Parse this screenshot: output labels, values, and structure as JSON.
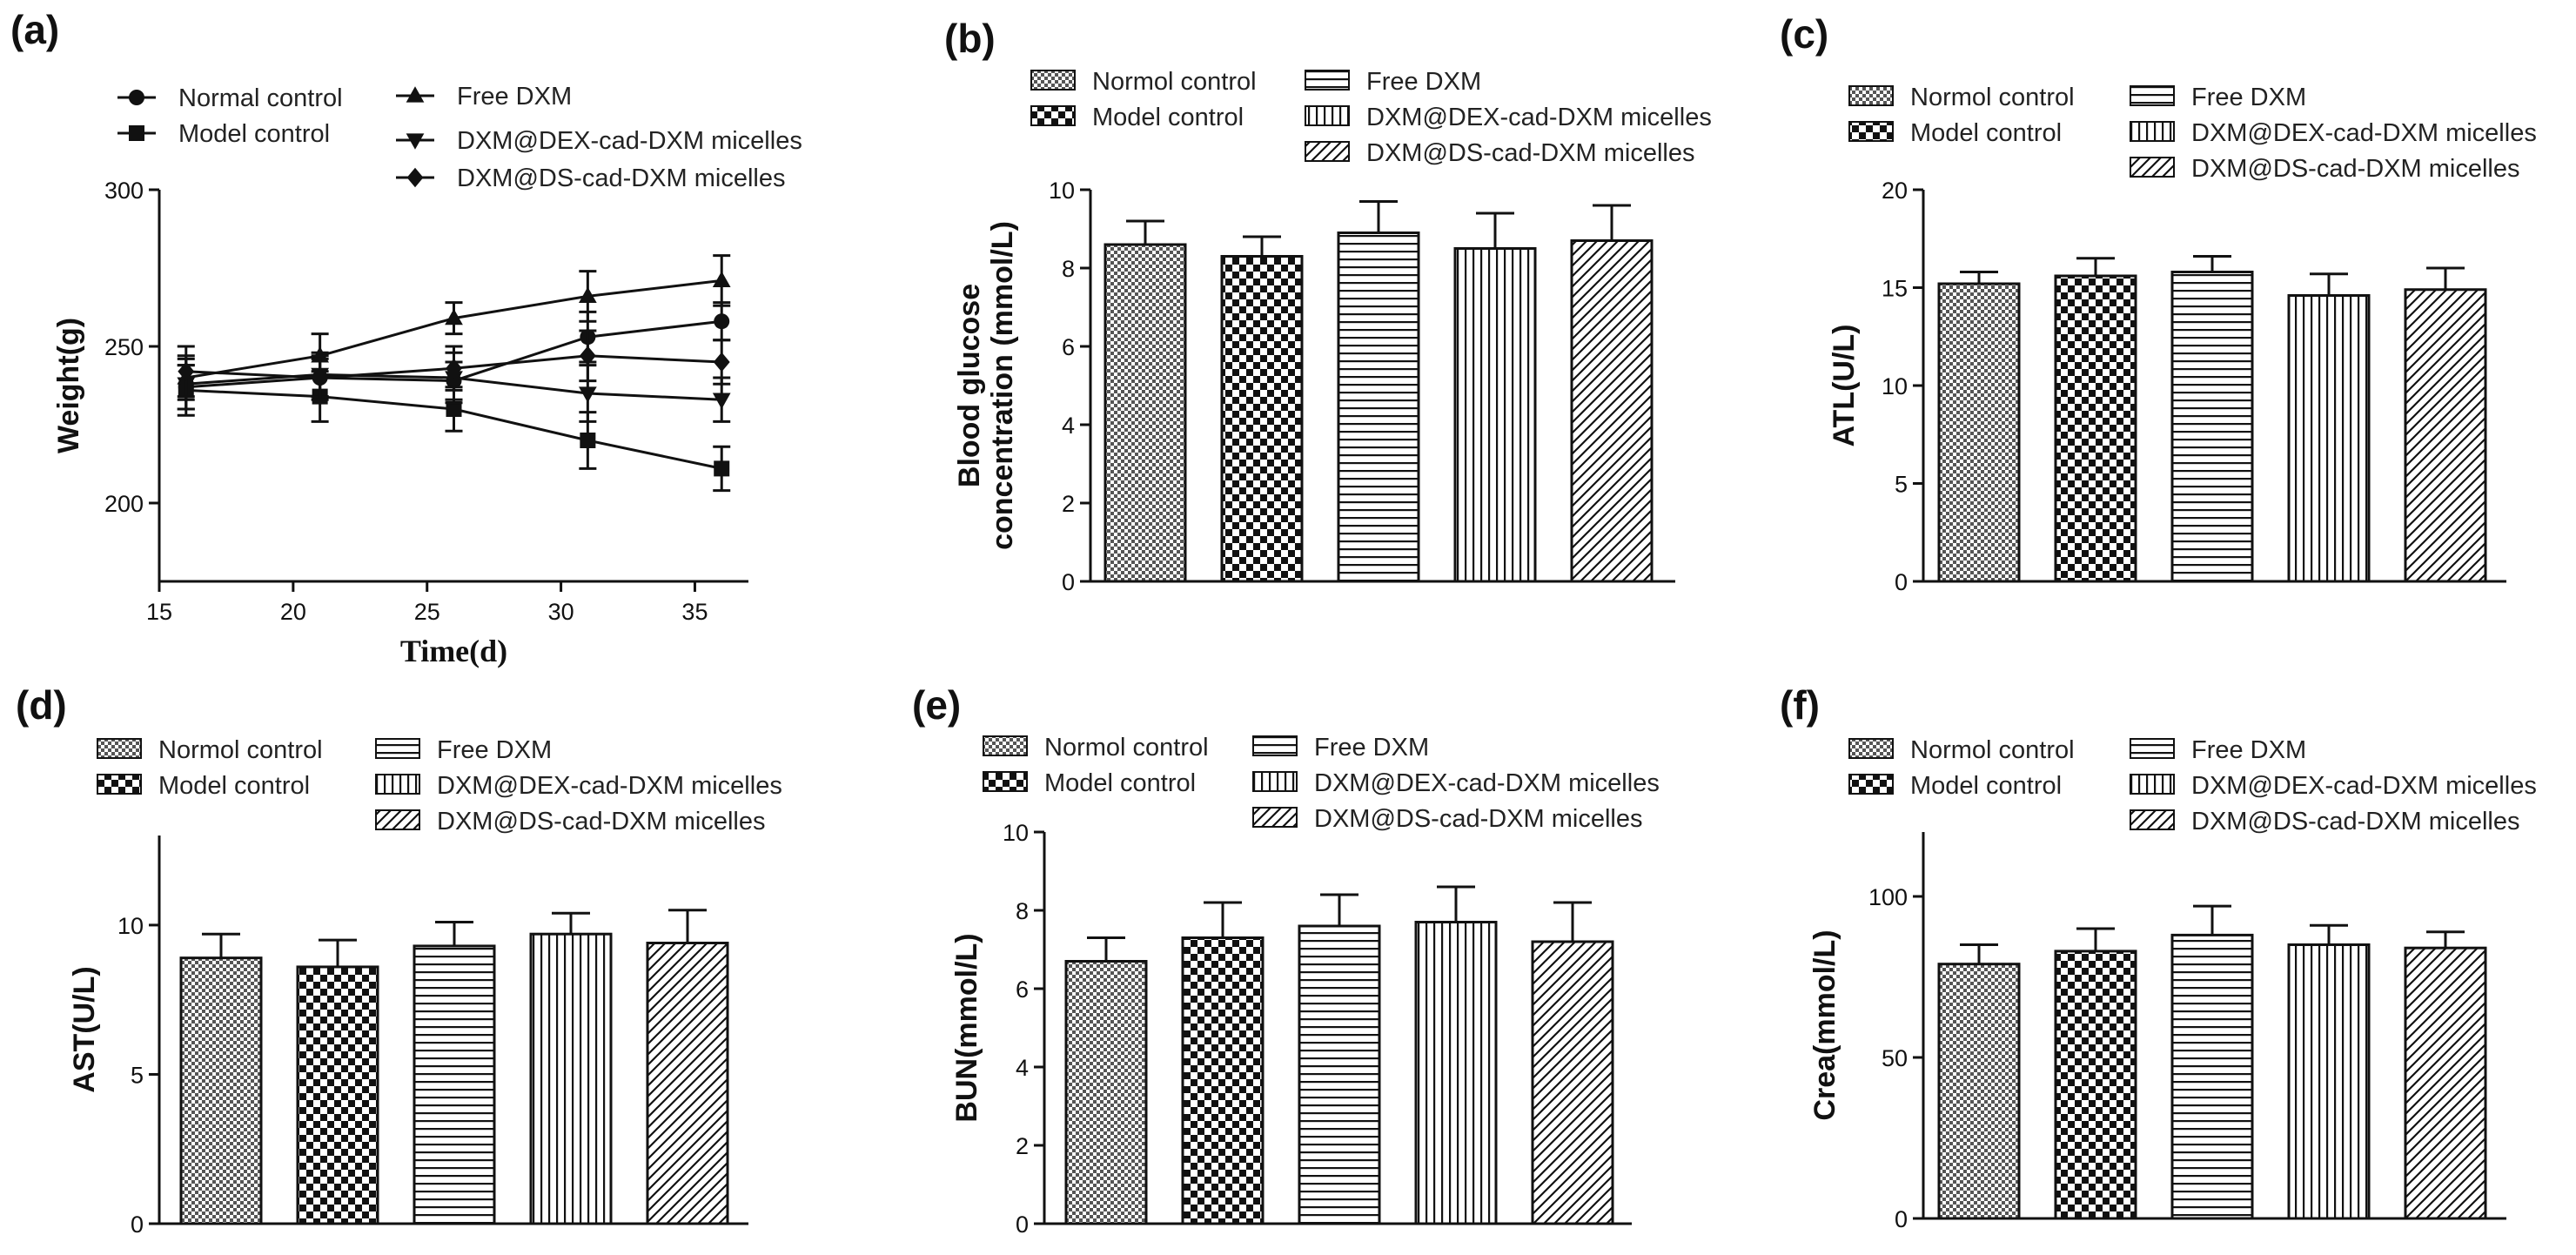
{
  "figure": {
    "panel_labels": [
      "(a)",
      "(b)",
      "(c)",
      "(d)",
      "(e)",
      "(f)"
    ]
  },
  "chart_data": [
    {
      "panel": "(a)",
      "type": "line",
      "xlabel": "Time(d)",
      "ylabel": "Weight(g)",
      "xlim": [
        15,
        37
      ],
      "ylim": [
        175,
        300
      ],
      "xticks": [
        15,
        20,
        25,
        30,
        35
      ],
      "yticks": [
        200,
        250,
        300
      ],
      "x": [
        16,
        21,
        26,
        31,
        36
      ],
      "legend": [
        "Normal control",
        "Model control",
        "Free DXM",
        "DXM@DEX-cad-DXM micelles",
        "DXM@DS-cad-DXM micelles"
      ],
      "series": [
        {
          "name": "Normal control",
          "marker": "circle",
          "values": [
            237,
            240,
            239,
            253,
            258
          ],
          "errors": [
            7,
            6,
            6,
            8,
            6
          ]
        },
        {
          "name": "Model control",
          "marker": "square",
          "values": [
            236,
            234,
            230,
            220,
            211
          ],
          "errors": [
            8,
            8,
            7,
            9,
            7
          ]
        },
        {
          "name": "Free DXM",
          "marker": "triangle-up",
          "values": [
            240,
            247,
            259,
            266,
            271
          ],
          "errors": [
            7,
            7,
            5,
            8,
            8
          ]
        },
        {
          "name": "DXM@DEX-cad-DXM micelles",
          "marker": "triangle-down",
          "values": [
            238,
            241,
            240,
            235,
            233
          ],
          "errors": [
            8,
            7,
            8,
            9,
            7
          ]
        },
        {
          "name": "DXM@DS-cad-DXM micelles",
          "marker": "diamond",
          "values": [
            242,
            240,
            243,
            247,
            245
          ],
          "errors": [
            8,
            7,
            7,
            8,
            7
          ]
        }
      ]
    },
    {
      "panel": "(b)",
      "type": "bar",
      "ylabel": "Blood glucose concentration (mmol/L)",
      "ylabel_lines": [
        "Blood glucose",
        "concentration (mmol/L)"
      ],
      "ylim": [
        0,
        10
      ],
      "yticks": [
        0,
        2,
        4,
        6,
        8,
        10
      ],
      "legend": [
        "Normol control",
        "Model control",
        "Free DXM",
        "DXM@DEX-cad-DXM micelles",
        "DXM@DS-cad-DXM micelles"
      ],
      "categories": [
        "Normol control",
        "Model control",
        "Free DXM",
        "DXM@DEX-cad-DXM micelles",
        "DXM@DS-cad-DXM micelles"
      ],
      "values": [
        8.6,
        8.3,
        8.9,
        8.5,
        8.7
      ],
      "errors": [
        0.6,
        0.5,
        0.8,
        0.9,
        0.9
      ]
    },
    {
      "panel": "(c)",
      "type": "bar",
      "ylabel": "ATL(U/L)",
      "ylim": [
        0,
        20
      ],
      "yticks": [
        0,
        5,
        10,
        15,
        20
      ],
      "legend": [
        "Normol control",
        "Model control",
        "Free DXM",
        "DXM@DEX-cad-DXM micelles",
        "DXM@DS-cad-DXM micelles"
      ],
      "categories": [
        "Normol control",
        "Model control",
        "Free DXM",
        "DXM@DEX-cad-DXM micelles",
        "DXM@DS-cad-DXM micelles"
      ],
      "values": [
        15.2,
        15.6,
        15.8,
        14.6,
        14.9
      ],
      "errors": [
        0.6,
        0.9,
        0.8,
        1.1,
        1.1
      ]
    },
    {
      "panel": "(d)",
      "type": "bar",
      "ylabel": "AST(U/L)",
      "ylim": [
        0,
        13
      ],
      "yticks": [
        0,
        5,
        10
      ],
      "legend": [
        "Normol control",
        "Model control",
        "Free DXM",
        "DXM@DEX-cad-DXM micelles",
        "DXM@DS-cad-DXM micelles"
      ],
      "categories": [
        "Normol control",
        "Model control",
        "Free DXM",
        "DXM@DEX-cad-DXM micelles",
        "DXM@DS-cad-DXM micelles"
      ],
      "values": [
        8.9,
        8.6,
        9.3,
        9.7,
        9.4
      ],
      "errors": [
        0.8,
        0.9,
        0.8,
        0.7,
        1.1
      ]
    },
    {
      "panel": "(e)",
      "type": "bar",
      "ylabel": "BUN(mmol/L)",
      "ylim": [
        0,
        10
      ],
      "yticks": [
        0,
        2,
        4,
        6,
        8,
        10
      ],
      "legend": [
        "Normol control",
        "Model control",
        "Free DXM",
        "DXM@DEX-cad-DXM micelles",
        "DXM@DS-cad-DXM micelles"
      ],
      "categories": [
        "Normol control",
        "Model control",
        "Free DXM",
        "DXM@DEX-cad-DXM micelles",
        "DXM@DS-cad-DXM micelles"
      ],
      "values": [
        6.7,
        7.3,
        7.6,
        7.7,
        7.2
      ],
      "errors": [
        0.6,
        0.9,
        0.8,
        0.9,
        1.0
      ]
    },
    {
      "panel": "(f)",
      "type": "bar",
      "ylabel": "Crea(mmol/L)",
      "ylim": [
        0,
        120
      ],
      "yticks": [
        0,
        50,
        100
      ],
      "legend": [
        "Normol control",
        "Model control",
        " Free DXM",
        "DXM@DEX-cad-DXM micelles",
        "DXM@DS-cad-DXM micelles"
      ],
      "categories": [
        "Normol control",
        "Model control",
        "Free DXM",
        "DXM@DEX-cad-DXM micelles",
        "DXM@DS-cad-DXM micelles"
      ],
      "values": [
        79,
        83,
        88,
        85,
        84
      ],
      "errors": [
        6,
        7,
        9,
        6,
        5
      ]
    }
  ]
}
